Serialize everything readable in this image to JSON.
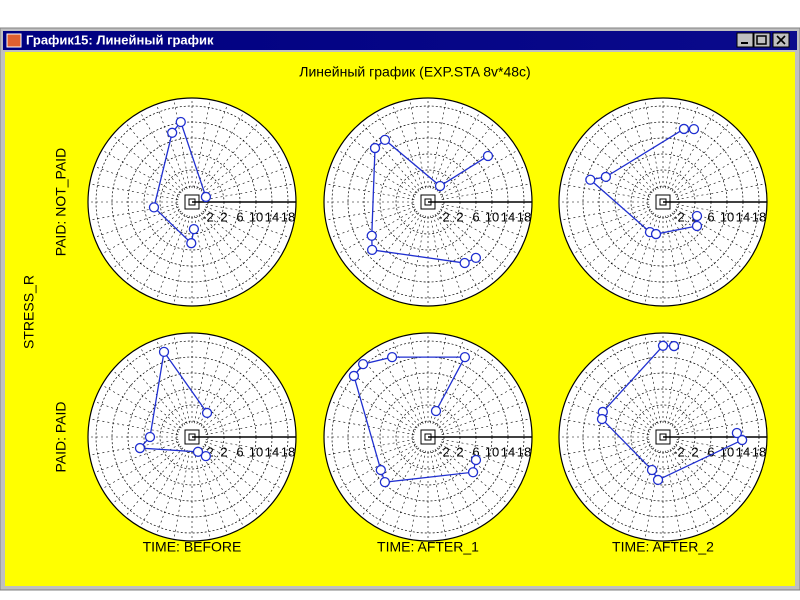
{
  "window": {
    "title": "График15: Линейный график"
  },
  "title": "Линейный график (EXP.STA 8v*48c)",
  "y_label": "STRESS_R",
  "row_labels": [
    "PAID: NOT_PAID",
    "PAID: PAID"
  ],
  "col_labels": [
    "TIME: BEFORE",
    "TIME: AFTER_1",
    "TIME: AFTER_2"
  ],
  "chart_data": [
    {
      "type": "polar",
      "color": "#1f2fd0",
      "rlim": [
        -6,
        20
      ],
      "rticks": [
        -2,
        2,
        6,
        10,
        14,
        18
      ],
      "theta": [
        20,
        98,
        106,
        188,
        269,
        274
      ],
      "r": [
        -2.3,
        14.2,
        12,
        3.6,
        4.3,
        0.8
      ]
    },
    {
      "type": "polar",
      "color": "#1f2fd0",
      "rlim": [
        -6,
        20
      ],
      "rticks": [
        -2,
        2,
        6,
        10,
        14,
        18
      ],
      "theta": [
        37.5,
        53,
        124.7,
        134.5,
        211,
        220.6,
        301,
        310.6
      ],
      "r": [
        12.9,
        -1,
        12.9,
        12.9,
        10.4,
        12.4,
        11.8,
        12.4
      ]
    },
    {
      "type": "polar",
      "color": "#1f2fd0",
      "rlim": [
        -6,
        20
      ],
      "rticks": [
        -2,
        2,
        6,
        10,
        14,
        18
      ],
      "theta": [
        67,
        74,
        156.3,
        163,
        246.6,
        257.7,
        324.8,
        337.6
      ],
      "r": [
        13.8,
        13,
        9.6,
        13,
        2.2,
        2.2,
        4.4,
        3.2
      ]
    },
    {
      "type": "polar",
      "color": "#1f2fd0",
      "rlim": [
        -6,
        20
      ],
      "rticks": [
        -2,
        2,
        6,
        10,
        14,
        18
      ],
      "theta": [
        58,
        108.2,
        180,
        192,
        292,
        306
      ],
      "r": [
        1.1,
        16.4,
        4.5,
        7.3,
        -2,
        -0.1
      ]
    },
    {
      "type": "polar",
      "color": "#1f2fd0",
      "rlim": [
        -6,
        20
      ],
      "rticks": [
        -2,
        2,
        6,
        10,
        14,
        18
      ],
      "theta": [
        72.9,
        65.2,
        114.2,
        131.7,
        140.5,
        215,
        226.3,
        322,
        334.4
      ],
      "r": [
        0.8,
        16,
        15.9,
        18.4,
        18,
        8.4,
        9.6,
        8.3,
        7.3
      ]
    },
    {
      "type": "polar",
      "color": "#1f2fd0",
      "rlim": [
        -6,
        20
      ],
      "rticks": [
        -2,
        2,
        6,
        10,
        14,
        18
      ],
      "theta": [
        83.1,
        90,
        157.4,
        163.6,
        251.6,
        263.4,
        357.8,
        3.1
      ],
      "r": [
        16.9,
        16.8,
        10.3,
        9.9,
        2.7,
        4.8,
        13.8,
        12.5
      ]
    }
  ]
}
